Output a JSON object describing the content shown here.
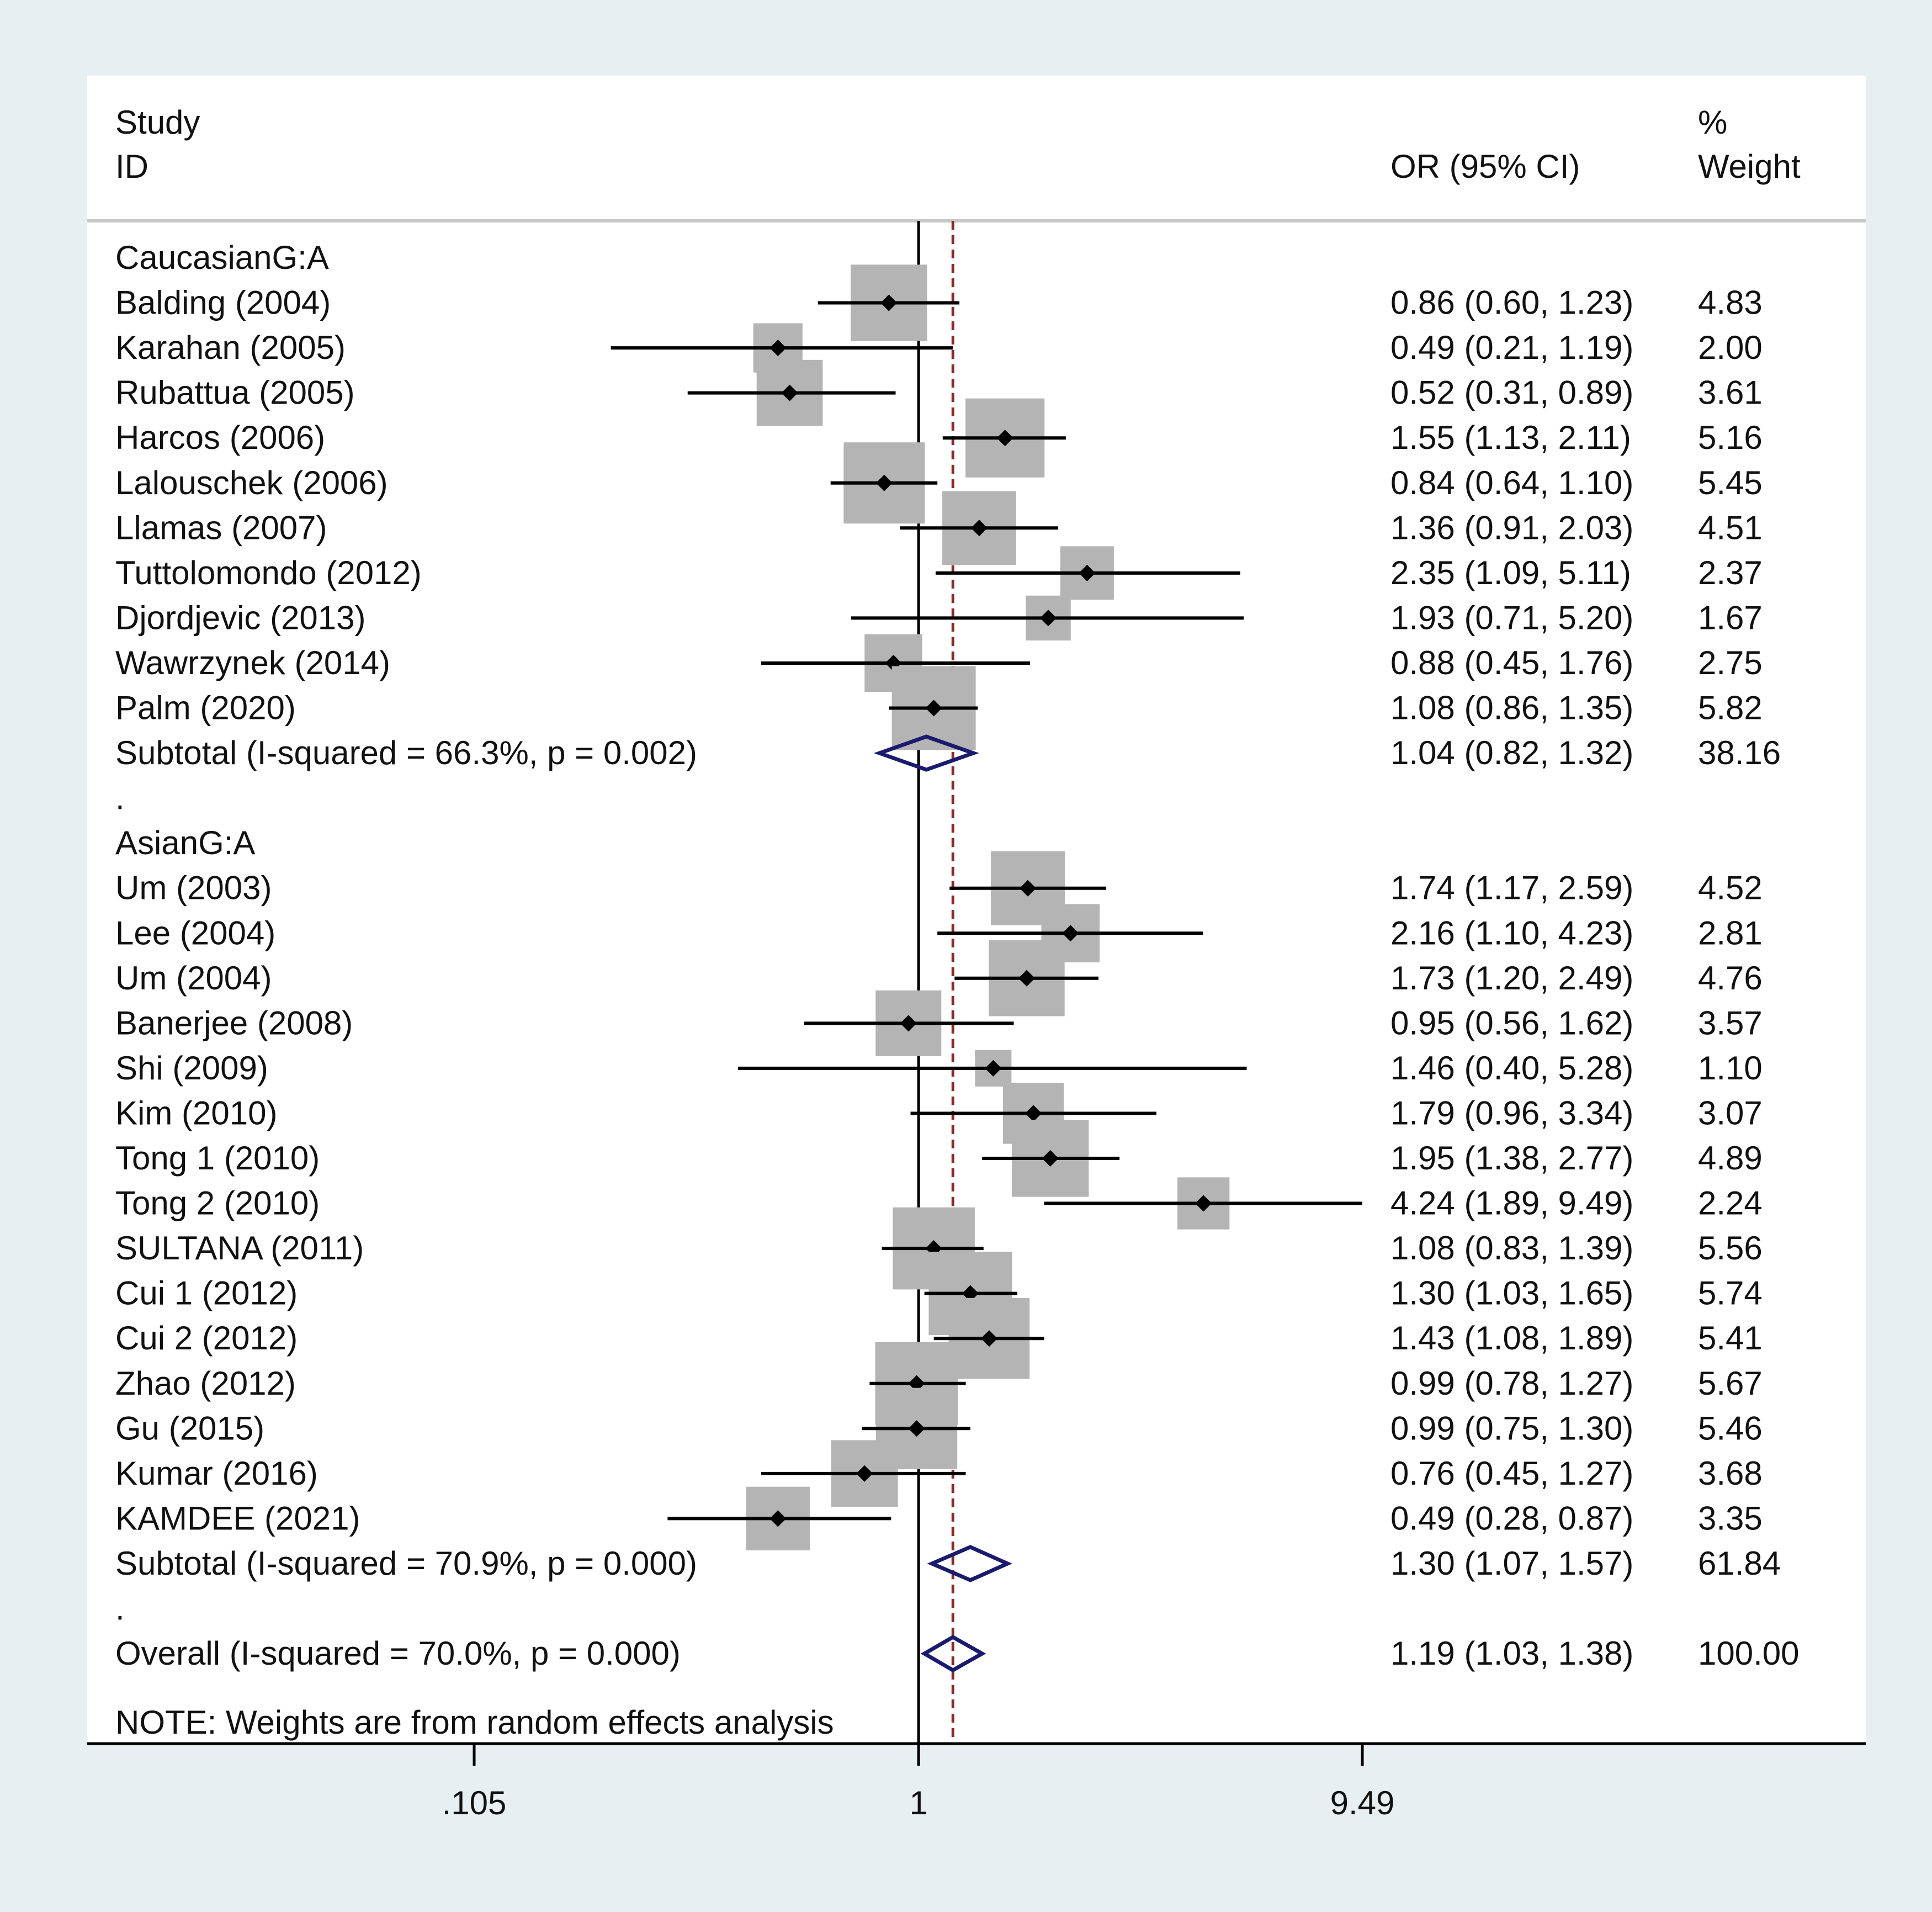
{
  "chart_data": {
    "type": "forest",
    "header": {
      "study_line1": "Study",
      "study_line2": "ID",
      "or_label": "OR (95% CI)",
      "weight_line1": "%",
      "weight_line2": "Weight"
    },
    "x_scale": "log",
    "xlim": [
      0.105,
      9.49
    ],
    "ticks": [
      {
        "value": 0.105,
        "label": ".105"
      },
      {
        "value": 1,
        "label": "1"
      },
      {
        "value": 9.49,
        "label": "9.49"
      }
    ],
    "null_line": 1,
    "overall_line": 1.19,
    "note": "NOTE: Weights are from random effects analysis",
    "rows": [
      {
        "kind": "group",
        "label": "CaucasianG:A"
      },
      {
        "kind": "study",
        "label": "Balding (2004)",
        "or": 0.86,
        "lo": 0.6,
        "hi": 1.23,
        "text": "0.86 (0.60, 1.23)",
        "weight": 4.83,
        "weight_text": "4.83"
      },
      {
        "kind": "study",
        "label": "Karahan (2005)",
        "or": 0.49,
        "lo": 0.21,
        "hi": 1.19,
        "text": "0.49 (0.21, 1.19)",
        "weight": 2.0,
        "weight_text": "2.00"
      },
      {
        "kind": "study",
        "label": "Rubattua (2005)",
        "or": 0.52,
        "lo": 0.31,
        "hi": 0.89,
        "text": "0.52 (0.31, 0.89)",
        "weight": 3.61,
        "weight_text": "3.61"
      },
      {
        "kind": "study",
        "label": "Harcos (2006)",
        "or": 1.55,
        "lo": 1.13,
        "hi": 2.11,
        "text": "1.55 (1.13, 2.11)",
        "weight": 5.16,
        "weight_text": "5.16"
      },
      {
        "kind": "study",
        "label": "Lalouschek (2006)",
        "or": 0.84,
        "lo": 0.64,
        "hi": 1.1,
        "text": "0.84 (0.64, 1.10)",
        "weight": 5.45,
        "weight_text": "5.45"
      },
      {
        "kind": "study",
        "label": "Llamas (2007)",
        "or": 1.36,
        "lo": 0.91,
        "hi": 2.03,
        "text": "1.36 (0.91, 2.03)",
        "weight": 4.51,
        "weight_text": "4.51"
      },
      {
        "kind": "study",
        "label": "Tuttolomondo (2012)",
        "or": 2.35,
        "lo": 1.09,
        "hi": 5.11,
        "text": "2.35 (1.09, 5.11)",
        "weight": 2.37,
        "weight_text": "2.37"
      },
      {
        "kind": "study",
        "label": "Djordjevic (2013)",
        "or": 1.93,
        "lo": 0.71,
        "hi": 5.2,
        "text": "1.93 (0.71, 5.20)",
        "weight": 1.67,
        "weight_text": "1.67"
      },
      {
        "kind": "study",
        "label": "Wawrzynek (2014)",
        "or": 0.88,
        "lo": 0.45,
        "hi": 1.76,
        "text": "0.88 (0.45, 1.76)",
        "weight": 2.75,
        "weight_text": "2.75"
      },
      {
        "kind": "study",
        "label": "Palm (2020)",
        "or": 1.08,
        "lo": 0.86,
        "hi": 1.35,
        "text": "1.08 (0.86, 1.35)",
        "weight": 5.82,
        "weight_text": "5.82"
      },
      {
        "kind": "subtotal",
        "label": "Subtotal  (I-squared = 66.3%, p = 0.002)",
        "or": 1.04,
        "lo": 0.82,
        "hi": 1.32,
        "text": "1.04 (0.82, 1.32)",
        "weight_text": "38.16"
      },
      {
        "kind": "spacer",
        "label": "."
      },
      {
        "kind": "group",
        "label": "AsianG:A"
      },
      {
        "kind": "study",
        "label": "Um (2003)",
        "or": 1.74,
        "lo": 1.17,
        "hi": 2.59,
        "text": "1.74 (1.17, 2.59)",
        "weight": 4.52,
        "weight_text": "4.52"
      },
      {
        "kind": "study",
        "label": "Lee (2004)",
        "or": 2.16,
        "lo": 1.1,
        "hi": 4.23,
        "text": "2.16 (1.10, 4.23)",
        "weight": 2.81,
        "weight_text": "2.81"
      },
      {
        "kind": "study",
        "label": "Um (2004)",
        "or": 1.73,
        "lo": 1.2,
        "hi": 2.49,
        "text": "1.73 (1.20, 2.49)",
        "weight": 4.76,
        "weight_text": "4.76"
      },
      {
        "kind": "study",
        "label": "Banerjee (2008)",
        "or": 0.95,
        "lo": 0.56,
        "hi": 1.62,
        "text": "0.95 (0.56, 1.62)",
        "weight": 3.57,
        "weight_text": "3.57"
      },
      {
        "kind": "study",
        "label": "Shi (2009)",
        "or": 1.46,
        "lo": 0.4,
        "hi": 5.28,
        "text": "1.46 (0.40, 5.28)",
        "weight": 1.1,
        "weight_text": "1.10"
      },
      {
        "kind": "study",
        "label": "Kim (2010)",
        "or": 1.79,
        "lo": 0.96,
        "hi": 3.34,
        "text": "1.79 (0.96, 3.34)",
        "weight": 3.07,
        "weight_text": "3.07"
      },
      {
        "kind": "study",
        "label": "Tong 1 (2010)",
        "or": 1.95,
        "lo": 1.38,
        "hi": 2.77,
        "text": "1.95 (1.38, 2.77)",
        "weight": 4.89,
        "weight_text": "4.89"
      },
      {
        "kind": "study",
        "label": "Tong 2 (2010)",
        "or": 4.24,
        "lo": 1.89,
        "hi": 9.49,
        "text": "4.24 (1.89, 9.49)",
        "weight": 2.24,
        "weight_text": "2.24"
      },
      {
        "kind": "study",
        "label": "SULTANA (2011)",
        "or": 1.08,
        "lo": 0.83,
        "hi": 1.39,
        "text": "1.08 (0.83, 1.39)",
        "weight": 5.56,
        "weight_text": "5.56"
      },
      {
        "kind": "study",
        "label": "Cui 1 (2012)",
        "or": 1.3,
        "lo": 1.03,
        "hi": 1.65,
        "text": "1.30 (1.03, 1.65)",
        "weight": 5.74,
        "weight_text": "5.74"
      },
      {
        "kind": "study",
        "label": "Cui 2 (2012)",
        "or": 1.43,
        "lo": 1.08,
        "hi": 1.89,
        "text": "1.43 (1.08, 1.89)",
        "weight": 5.41,
        "weight_text": "5.41"
      },
      {
        "kind": "study",
        "label": "Zhao (2012)",
        "or": 0.99,
        "lo": 0.78,
        "hi": 1.27,
        "text": "0.99 (0.78, 1.27)",
        "weight": 5.67,
        "weight_text": "5.67"
      },
      {
        "kind": "study",
        "label": "Gu (2015)",
        "or": 0.99,
        "lo": 0.75,
        "hi": 1.3,
        "text": "0.99 (0.75, 1.30)",
        "weight": 5.46,
        "weight_text": "5.46"
      },
      {
        "kind": "study",
        "label": "Kumar (2016)",
        "or": 0.76,
        "lo": 0.45,
        "hi": 1.27,
        "text": "0.76 (0.45, 1.27)",
        "weight": 3.68,
        "weight_text": "3.68"
      },
      {
        "kind": "study",
        "label": "KAMDEE (2021)",
        "or": 0.49,
        "lo": 0.28,
        "hi": 0.87,
        "text": "0.49 (0.28, 0.87)",
        "weight": 3.35,
        "weight_text": "3.35"
      },
      {
        "kind": "subtotal",
        "label": "Subtotal  (I-squared = 70.9%, p = 0.000)",
        "or": 1.3,
        "lo": 1.07,
        "hi": 1.57,
        "text": "1.30 (1.07, 1.57)",
        "weight_text": "61.84"
      },
      {
        "kind": "spacer",
        "label": "."
      },
      {
        "kind": "overall",
        "label": "Overall  (I-squared = 70.0%, p = 0.000)",
        "or": 1.19,
        "lo": 1.03,
        "hi": 1.38,
        "text": "1.19 (1.03, 1.38)",
        "weight_text": "100.00"
      }
    ],
    "colors": {
      "page_bg": "#e8eff2",
      "panel_bg": "#ffffff",
      "text": "#111111",
      "separator": "#c8c8c8",
      "weight_box": "#b4b4b4",
      "point": "#000000",
      "ci_line": "#000000",
      "diamond": "#1a1a6e",
      "overall_line": "#8b2a2a"
    }
  }
}
